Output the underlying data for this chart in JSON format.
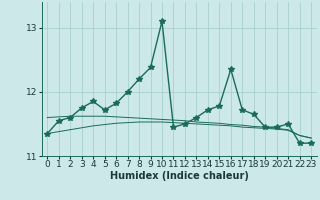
{
  "xlabel": "Humidex (Indice chaleur)",
  "bg_color": "#cce8e8",
  "grid_color": "#aad0d0",
  "line_color": "#1a6b5a",
  "x_values": [
    0,
    1,
    2,
    3,
    4,
    5,
    6,
    7,
    8,
    9,
    10,
    11,
    12,
    13,
    14,
    15,
    16,
    17,
    18,
    19,
    20,
    21,
    22,
    23
  ],
  "y_main": [
    11.35,
    11.55,
    11.6,
    11.75,
    11.85,
    11.72,
    11.82,
    12.0,
    12.2,
    12.38,
    13.1,
    11.45,
    11.5,
    11.6,
    11.72,
    11.78,
    12.35,
    11.72,
    11.65,
    11.45,
    11.45,
    11.5,
    11.2,
    11.2
  ],
  "y_trend1": [
    11.35,
    11.38,
    11.41,
    11.44,
    11.47,
    11.49,
    11.51,
    11.52,
    11.53,
    11.53,
    11.53,
    11.52,
    11.51,
    11.5,
    11.49,
    11.48,
    11.47,
    11.45,
    11.44,
    11.43,
    11.42,
    11.4,
    11.32,
    11.28
  ],
  "y_trend2": [
    11.6,
    11.61,
    11.62,
    11.62,
    11.62,
    11.62,
    11.61,
    11.6,
    11.59,
    11.58,
    11.57,
    11.56,
    11.55,
    11.53,
    11.52,
    11.51,
    11.49,
    11.48,
    11.46,
    11.45,
    11.43,
    11.41,
    11.32,
    11.28
  ],
  "ylim": [
    11.0,
    13.4
  ],
  "xlim": [
    -0.5,
    23.5
  ],
  "yticks": [
    11,
    12,
    13
  ],
  "xticks": [
    0,
    1,
    2,
    3,
    4,
    5,
    6,
    7,
    8,
    9,
    10,
    11,
    12,
    13,
    14,
    15,
    16,
    17,
    18,
    19,
    20,
    21,
    22,
    23
  ],
  "marker": "*",
  "markersize": 4,
  "linewidth": 1.0,
  "xlabel_fontsize": 7,
  "tick_fontsize": 6.5
}
